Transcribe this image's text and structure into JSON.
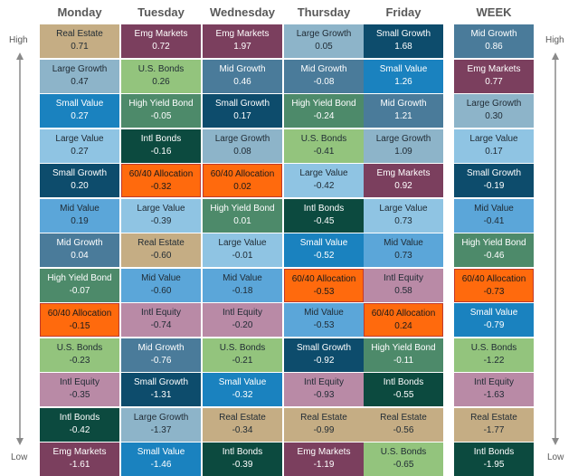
{
  "chart_data": {
    "type": "table",
    "high_label": "High",
    "low_label": "Low",
    "colors": {
      "Real Estate": "#c5ad84",
      "Emg Markets": "#7b3f5e",
      "Large Growth": "#8db4c9",
      "Small Growth": "#0d4c6c",
      "Mid Growth": "#4a7b9a",
      "U.S. Bonds": "#93c47d",
      "High Yield Bond": "#4d8a6a",
      "Small Value": "#1a82bf",
      "Large Value": "#8fc4e3",
      "Intl Bonds": "#0c4a3f",
      "60/40 Allocation": "#ff6a0d",
      "Mid Value": "#5ba6d9",
      "Intl Equity": "#b98aa6"
    },
    "dark_text_assets": [
      "Real Estate",
      "Large Growth",
      "U.S. Bonds",
      "Large Value",
      "Intl Equity",
      "Mid Value"
    ],
    "columns": [
      {
        "day": "Monday",
        "cells": [
          {
            "asset": "Real Estate",
            "value": "0.71"
          },
          {
            "asset": "Large Growth",
            "value": "0.47"
          },
          {
            "asset": "Small Value",
            "value": "0.27"
          },
          {
            "asset": "Large Value",
            "value": "0.27"
          },
          {
            "asset": "Small Growth",
            "value": "0.20"
          },
          {
            "asset": "Mid Value",
            "value": "0.19"
          },
          {
            "asset": "Mid Growth",
            "value": "0.04"
          },
          {
            "asset": "High Yield Bond",
            "value": "-0.07"
          },
          {
            "asset": "60/40 Allocation",
            "value": "-0.15"
          },
          {
            "asset": "U.S. Bonds",
            "value": "-0.23"
          },
          {
            "asset": "Intl Equity",
            "value": "-0.35"
          },
          {
            "asset": "Intl Bonds",
            "value": "-0.42"
          },
          {
            "asset": "Emg Markets",
            "value": "-1.61"
          }
        ]
      },
      {
        "day": "Tuesday",
        "cells": [
          {
            "asset": "Emg Markets",
            "value": "0.72"
          },
          {
            "asset": "U.S. Bonds",
            "value": "0.26"
          },
          {
            "asset": "High Yield Bond",
            "value": "-0.05"
          },
          {
            "asset": "Intl Bonds",
            "value": "-0.16"
          },
          {
            "asset": "60/40 Allocation",
            "value": "-0.32"
          },
          {
            "asset": "Large Value",
            "value": "-0.39"
          },
          {
            "asset": "Real Estate",
            "value": "-0.60"
          },
          {
            "asset": "Mid Value",
            "value": "-0.60"
          },
          {
            "asset": "Intl Equity",
            "value": "-0.74"
          },
          {
            "asset": "Mid Growth",
            "value": "-0.76"
          },
          {
            "asset": "Small Growth",
            "value": "-1.31"
          },
          {
            "asset": "Large Growth",
            "value": "-1.37"
          },
          {
            "asset": "Small Value",
            "value": "-1.46"
          }
        ]
      },
      {
        "day": "Wednesday",
        "cells": [
          {
            "asset": "Emg Markets",
            "value": "1.97"
          },
          {
            "asset": "Mid Growth",
            "value": "0.46"
          },
          {
            "asset": "Small Growth",
            "value": "0.17"
          },
          {
            "asset": "Large Growth",
            "value": "0.08"
          },
          {
            "asset": "60/40 Allocation",
            "value": "0.02"
          },
          {
            "asset": "High Yield Bond",
            "value": "0.01"
          },
          {
            "asset": "Large Value",
            "value": "-0.01"
          },
          {
            "asset": "Mid Value",
            "value": "-0.18"
          },
          {
            "asset": "Intl Equity",
            "value": "-0.20"
          },
          {
            "asset": "U.S. Bonds",
            "value": "-0.21"
          },
          {
            "asset": "Small Value",
            "value": "-0.32"
          },
          {
            "asset": "Real Estate",
            "value": "-0.34"
          },
          {
            "asset": "Intl Bonds",
            "value": "-0.39"
          }
        ]
      },
      {
        "day": "Thursday",
        "cells": [
          {
            "asset": "Large Growth",
            "value": "0.05"
          },
          {
            "asset": "Mid Growth",
            "value": "-0.08"
          },
          {
            "asset": "High Yield Bond",
            "value": "-0.24"
          },
          {
            "asset": "U.S. Bonds",
            "value": "-0.41"
          },
          {
            "asset": "Large Value",
            "value": "-0.42"
          },
          {
            "asset": "Intl Bonds",
            "value": "-0.45"
          },
          {
            "asset": "Small Value",
            "value": "-0.52"
          },
          {
            "asset": "60/40 Allocation",
            "value": "-0.53"
          },
          {
            "asset": "Mid Value",
            "value": "-0.53"
          },
          {
            "asset": "Small Growth",
            "value": "-0.92"
          },
          {
            "asset": "Intl Equity",
            "value": "-0.93"
          },
          {
            "asset": "Real Estate",
            "value": "-0.99"
          },
          {
            "asset": "Emg Markets",
            "value": "-1.19"
          }
        ]
      },
      {
        "day": "Friday",
        "cells": [
          {
            "asset": "Small Growth",
            "value": "1.68"
          },
          {
            "asset": "Small Value",
            "value": "1.26"
          },
          {
            "asset": "Mid Growth",
            "value": "1.21"
          },
          {
            "asset": "Large Growth",
            "value": "1.09"
          },
          {
            "asset": "Emg Markets",
            "value": "0.92"
          },
          {
            "asset": "Large Value",
            "value": "0.73"
          },
          {
            "asset": "Mid Value",
            "value": "0.73"
          },
          {
            "asset": "Intl Equity",
            "value": "0.58"
          },
          {
            "asset": "60/40 Allocation",
            "value": "0.24"
          },
          {
            "asset": "High Yield Bond",
            "value": "-0.11"
          },
          {
            "asset": "Intl Bonds",
            "value": "-0.55"
          },
          {
            "asset": "Real Estate",
            "value": "-0.56"
          },
          {
            "asset": "U.S. Bonds",
            "value": "-0.65"
          }
        ]
      },
      {
        "day": "WEEK",
        "cells": [
          {
            "asset": "Mid Growth",
            "value": "0.86"
          },
          {
            "asset": "Emg Markets",
            "value": "0.77"
          },
          {
            "asset": "Large Growth",
            "value": "0.30"
          },
          {
            "asset": "Large Value",
            "value": "0.17"
          },
          {
            "asset": "Small Growth",
            "value": "-0.19"
          },
          {
            "asset": "Mid Value",
            "value": "-0.41"
          },
          {
            "asset": "High Yield Bond",
            "value": "-0.46"
          },
          {
            "asset": "60/40 Allocation",
            "value": "-0.73"
          },
          {
            "asset": "Small Value",
            "value": "-0.79"
          },
          {
            "asset": "U.S. Bonds",
            "value": "-1.22"
          },
          {
            "asset": "Intl Equity",
            "value": "-1.63"
          },
          {
            "asset": "Real Estate",
            "value": "-1.77"
          },
          {
            "asset": "Intl Bonds",
            "value": "-1.95"
          }
        ]
      }
    ]
  }
}
